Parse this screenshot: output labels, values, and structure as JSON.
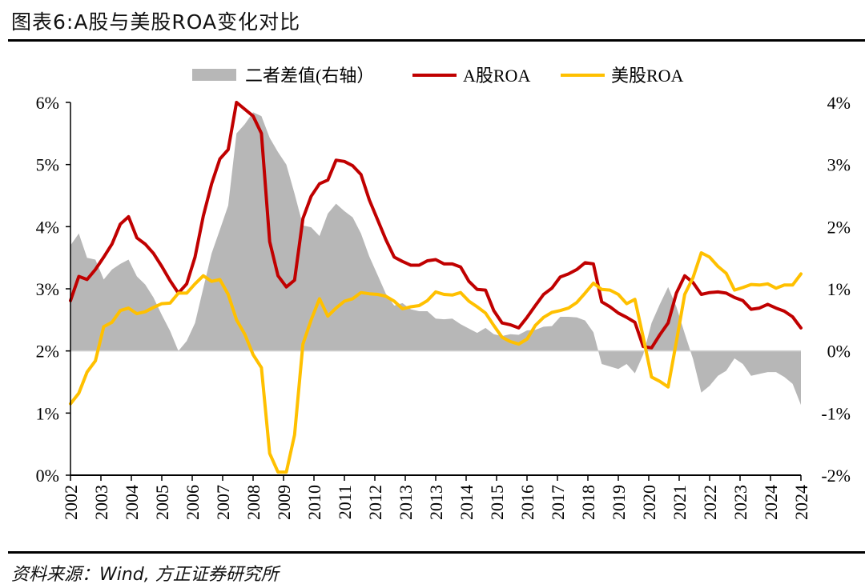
{
  "title": "图表6:A股与美股ROA变化对比",
  "source": "资料来源：Wind, 方正证券研究所",
  "chart_data": {
    "type": "line",
    "title": "图表6:A股与美股ROA变化对比",
    "x_tick_labels": [
      "2002",
      "2003",
      "2004",
      "2005",
      "2006",
      "2007",
      "2008",
      "2009",
      "2010",
      "2011",
      "2012",
      "2013",
      "2013",
      "2014",
      "2015",
      "2016",
      "2017",
      "2018",
      "2019",
      "2020",
      "2021",
      "2022",
      "2023",
      "2024",
      "2024"
    ],
    "left_axis": {
      "ticks": [
        "0%",
        "1%",
        "2%",
        "3%",
        "4%",
        "5%",
        "6%"
      ],
      "ylim": [
        0,
        6
      ],
      "unit": "%"
    },
    "right_axis": {
      "ticks": [
        "-2%",
        "-1%",
        "0%",
        "1%",
        "2%",
        "3%",
        "4%"
      ],
      "ylim": [
        -2,
        4
      ],
      "unit": "%"
    },
    "legend_position": "top",
    "grid": false,
    "series": [
      {
        "name": "二者差值(右轴）",
        "type": "area",
        "axis": "right",
        "color": "#b7b7b7",
        "values": [
          1.7,
          1.89,
          1.5,
          1.47,
          1.15,
          1.31,
          1.4,
          1.47,
          1.2,
          1.07,
          0.86,
          0.58,
          0.32,
          0.0,
          0.16,
          0.45,
          1.01,
          1.57,
          1.95,
          2.34,
          3.5,
          3.65,
          3.84,
          3.78,
          3.43,
          3.2,
          3.0,
          2.53,
          2.02,
          1.99,
          1.85,
          2.21,
          2.37,
          2.25,
          2.15,
          1.89,
          1.52,
          1.22,
          0.92,
          0.73,
          0.77,
          0.67,
          0.64,
          0.64,
          0.52,
          0.51,
          0.52,
          0.43,
          0.36,
          0.29,
          0.37,
          0.27,
          0.24,
          0.27,
          0.26,
          0.33,
          0.34,
          0.39,
          0.4,
          0.55,
          0.55,
          0.54,
          0.49,
          0.3,
          -0.21,
          -0.25,
          -0.29,
          -0.21,
          -0.36,
          -0.06,
          0.45,
          0.75,
          1.03,
          0.71,
          0.28,
          -0.13,
          -0.67,
          -0.56,
          -0.4,
          -0.32,
          -0.12,
          -0.21,
          -0.4,
          -0.37,
          -0.34,
          -0.34,
          -0.42,
          -0.53,
          -0.87
        ]
      },
      {
        "name": "A股ROA",
        "type": "line",
        "axis": "left",
        "color": "#c00000",
        "values": [
          2.81,
          3.2,
          3.15,
          3.31,
          3.51,
          3.72,
          4.04,
          4.16,
          3.82,
          3.72,
          3.57,
          3.36,
          3.13,
          2.93,
          3.08,
          3.51,
          4.17,
          4.69,
          5.09,
          5.24,
          6.0,
          5.89,
          5.78,
          5.5,
          3.76,
          3.21,
          3.03,
          3.14,
          4.13,
          4.49,
          4.69,
          4.75,
          5.07,
          5.05,
          4.98,
          4.84,
          4.43,
          4.11,
          3.79,
          3.51,
          3.44,
          3.38,
          3.38,
          3.45,
          3.47,
          3.4,
          3.4,
          3.35,
          3.12,
          2.99,
          2.98,
          2.65,
          2.45,
          2.42,
          2.37,
          2.54,
          2.73,
          2.91,
          3.01,
          3.19,
          3.24,
          3.31,
          3.42,
          3.4,
          2.79,
          2.71,
          2.61,
          2.54,
          2.46,
          2.07,
          2.05,
          2.26,
          2.45,
          2.93,
          3.21,
          3.1,
          2.91,
          2.94,
          2.95,
          2.93,
          2.86,
          2.81,
          2.67,
          2.69,
          2.75,
          2.69,
          2.64,
          2.55,
          2.37
        ]
      },
      {
        "name": "美股ROA",
        "type": "line",
        "axis": "left",
        "color": "#ffc000",
        "values": [
          1.15,
          1.32,
          1.66,
          1.84,
          2.39,
          2.46,
          2.65,
          2.69,
          2.6,
          2.63,
          2.7,
          2.76,
          2.77,
          2.93,
          2.93,
          3.08,
          3.21,
          3.12,
          3.15,
          2.91,
          2.5,
          2.27,
          1.94,
          1.73,
          0.35,
          0.05,
          0.05,
          0.65,
          2.11,
          2.5,
          2.84,
          2.56,
          2.69,
          2.8,
          2.84,
          2.94,
          2.92,
          2.91,
          2.88,
          2.8,
          2.68,
          2.71,
          2.73,
          2.81,
          2.95,
          2.91,
          2.9,
          2.94,
          2.8,
          2.71,
          2.61,
          2.41,
          2.22,
          2.15,
          2.11,
          2.19,
          2.41,
          2.54,
          2.62,
          2.65,
          2.69,
          2.78,
          2.93,
          3.09,
          2.99,
          2.98,
          2.91,
          2.76,
          2.83,
          2.22,
          1.58,
          1.51,
          1.42,
          2.15,
          2.91,
          3.18,
          3.58,
          3.51,
          3.36,
          3.25,
          2.98,
          3.02,
          3.07,
          3.06,
          3.08,
          3.01,
          3.06,
          3.06,
          3.24
        ]
      }
    ]
  }
}
